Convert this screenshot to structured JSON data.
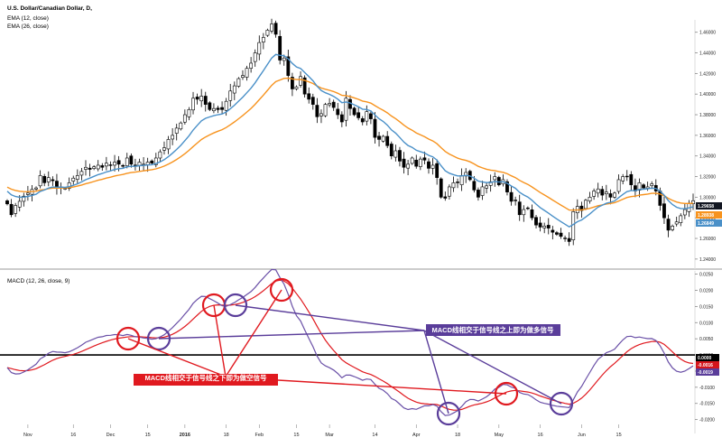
{
  "chart_data": [
    {
      "type": "candlestick",
      "title": "U.S. Dollar/Canadian Dollar, D,",
      "indicator_labels": [
        "EMA (12, close)",
        "EMA (26, close)"
      ],
      "ylim": [
        1.232,
        1.472
      ],
      "y_ticks": [
        "1.46000",
        "1.44000",
        "1.42000",
        "1.40000",
        "1.38000",
        "1.36000",
        "1.34000",
        "1.32000",
        "1.30000",
        "1.28000",
        "1.26000",
        "1.24000"
      ],
      "last_values": [
        {
          "label": "1.29658",
          "color": "#131722",
          "text_color": "#ffffff"
        },
        {
          "label": "1.28938",
          "color": "#f7931e",
          "text_color": "#ffffff"
        },
        {
          "label": "1.26849",
          "color": "#4a90c8",
          "text_color": "#ffffff"
        }
      ],
      "close": [
        1.2935,
        1.283,
        1.292,
        1.296,
        1.301,
        1.304,
        1.3075,
        1.309,
        1.321,
        1.314,
        1.319,
        1.316,
        1.3085,
        1.31,
        1.3085,
        1.314,
        1.3185,
        1.321,
        1.325,
        1.329,
        1.327,
        1.3295,
        1.331,
        1.329,
        1.333,
        1.331,
        1.334,
        1.332,
        1.33,
        1.338,
        1.332,
        1.33,
        1.334,
        1.332,
        1.334,
        1.333,
        1.338,
        1.344,
        1.348,
        1.356,
        1.36,
        1.367,
        1.372,
        1.38,
        1.385,
        1.396,
        1.395,
        1.398,
        1.39,
        1.385,
        1.386,
        1.385,
        1.385,
        1.393,
        1.403,
        1.408,
        1.415,
        1.418,
        1.425,
        1.43,
        1.44,
        1.45,
        1.455,
        1.462,
        1.468,
        1.458,
        1.433,
        1.435,
        1.418,
        1.405,
        1.407,
        1.417,
        1.4,
        1.395,
        1.39,
        1.378,
        1.381,
        1.39,
        1.391,
        1.387,
        1.38,
        1.373,
        1.396,
        1.386,
        1.38,
        1.377,
        1.373,
        1.383,
        1.376,
        1.358,
        1.356,
        1.359,
        1.35,
        1.34,
        1.345,
        1.335,
        1.329,
        1.332,
        1.338,
        1.33,
        1.337,
        1.336,
        1.328,
        1.331,
        1.319,
        1.3,
        1.299,
        1.31,
        1.314,
        1.314,
        1.321,
        1.324,
        1.317,
        1.307,
        1.3,
        1.31,
        1.311,
        1.315,
        1.32,
        1.312,
        1.317,
        1.305,
        1.296,
        1.297,
        1.283,
        1.288,
        1.289,
        1.28,
        1.273,
        1.271,
        1.272,
        1.27,
        1.266,
        1.264,
        1.262,
        1.26,
        1.257,
        1.286,
        1.291,
        1.287,
        1.297,
        1.3,
        1.306,
        1.308,
        1.302,
        1.305,
        1.3,
        1.304,
        1.317,
        1.32,
        1.32,
        1.312,
        1.306,
        1.314,
        1.309,
        1.31,
        1.313,
        1.306,
        1.292,
        1.28,
        1.268,
        1.272,
        1.276,
        1.282,
        1.288,
        1.294,
        1.2966
      ],
      "ema12_start": 1.308,
      "ema26_start": 1.311,
      "x_ticks": [
        {
          "index": 5,
          "label": "Nov"
        },
        {
          "index": 16,
          "label": "16"
        },
        {
          "index": 25,
          "label": "Dec"
        },
        {
          "index": 34,
          "label": "15"
        },
        {
          "index": 43,
          "label": "2016",
          "bold": true
        },
        {
          "index": 53,
          "label": "18"
        },
        {
          "index": 61,
          "label": "Feb"
        },
        {
          "index": 70,
          "label": "15"
        },
        {
          "index": 78,
          "label": "Mar"
        },
        {
          "index": 89,
          "label": "14"
        },
        {
          "index": 99,
          "label": "Apr"
        },
        {
          "index": 109,
          "label": "18"
        },
        {
          "index": 119,
          "label": "May"
        },
        {
          "index": 129,
          "label": "16"
        },
        {
          "index": 139,
          "label": "Jun"
        },
        {
          "index": 148,
          "label": "15"
        }
      ],
      "colors": {
        "ema12": "#4a90c8",
        "ema26": "#f7931e",
        "up": "#ffffff",
        "down": "#000000"
      }
    },
    {
      "type": "line",
      "title": "MACD (12, 26, close, 9)",
      "ylim": [
        -0.0215,
        0.026
      ],
      "y_ticks": [
        "0.0250",
        "0.0200",
        "0.0150",
        "0.0100",
        "0.0050",
        "0.0000",
        "-0.0050",
        "-0.0100",
        "-0.0150",
        "-0.0200"
      ],
      "last_values": [
        {
          "label": "0.0000",
          "color": "#000000",
          "text_color": "#ffffff"
        },
        {
          "label": "-0.0016",
          "color": "#d4151c",
          "text_color": "#ffffff"
        },
        {
          "label": "-0.0019",
          "color": "#5a3d9a",
          "text_color": "#ffffff"
        }
      ],
      "series": [
        {
          "name": "MACD",
          "color": "#6a50a7"
        },
        {
          "name": "Signal",
          "color": "#e0191f"
        }
      ]
    }
  ],
  "annotations": {
    "bullish_label": "MACD线相交于信号线之上即为做多信号",
    "bearish_label": "MACD线相交于信号线之下即为做空信号",
    "bullish_color": "#5a3d9a",
    "bearish_color": "#e0191f"
  }
}
